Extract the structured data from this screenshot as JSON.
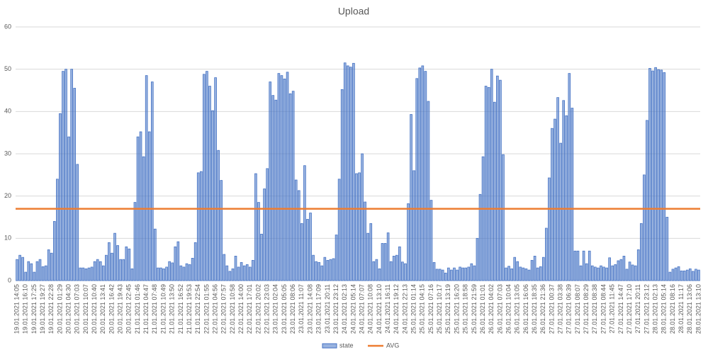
{
  "chart_data": {
    "type": "bar",
    "title": "Upload",
    "categories": [
      "19.01.2021 14:05",
      null,
      null,
      "19.01.2021 16:10",
      null,
      null,
      "19.01.2021 17:25",
      null,
      null,
      "19.01.2021 19:27",
      null,
      null,
      "19.01.2021 22:28",
      null,
      null,
      "20.01.2021 01:29",
      null,
      null,
      "20.01.2021 04:30",
      null,
      null,
      "20.01.2021 07:03",
      null,
      null,
      "20.01.2021 10:07",
      null,
      null,
      "20.01.2021 10:40",
      null,
      null,
      "20.01.2021 13:41",
      null,
      null,
      "20.01.2021 16:42",
      null,
      null,
      "20.01.2021 19:43",
      null,
      null,
      "20.01.2021 22:45",
      null,
      null,
      "21.01.2021 01:46",
      null,
      null,
      "21.01.2021 04:47",
      null,
      null,
      "21.01.2021 07:48",
      null,
      null,
      "21.01.2021 10:49",
      null,
      null,
      "21.01.2021 13:50",
      null,
      null,
      "21.01.2021 16:52",
      null,
      null,
      "21.01.2021 19:53",
      null,
      null,
      "21.01.2021 22:54",
      null,
      null,
      "22.01.2021 01:55",
      null,
      null,
      "22.01.2021 04:56",
      null,
      null,
      "22.01.2021 07:57",
      null,
      null,
      "22.01.2021 10:58",
      null,
      null,
      "22.01.2021 14:00",
      null,
      null,
      "22.01.2021 17:01",
      null,
      null,
      "22.01.2021 20:02",
      null,
      null,
      "22.01.2021 23:03",
      null,
      null,
      "23.01.2021 02:04",
      null,
      null,
      "23.01.2021 05:05",
      null,
      null,
      "23.01.2021 08:06",
      null,
      null,
      "23.01.2021 11:07",
      null,
      null,
      "23.01.2021 14:08",
      null,
      null,
      "23.01.2021 17:09",
      null,
      null,
      "23.01.2021 20:11",
      null,
      null,
      "23.01.2021 23:12",
      null,
      null,
      "24.01.2021 02:13",
      null,
      null,
      "24.01.2021 05:14",
      null,
      null,
      "24.01.2021 07:07",
      null,
      null,
      "24.01.2021 10:08",
      null,
      null,
      "24.01.2021 13:10",
      null,
      null,
      "24.01.2021 16:11",
      null,
      null,
      "24.01.2021 19:12",
      null,
      null,
      "24.01.2021 22:13",
      null,
      null,
      "25.01.2021 01:14",
      null,
      null,
      "25.01.2021 04:15",
      null,
      null,
      "25.01.2021 07:16",
      null,
      null,
      "25.01.2021 10:17",
      null,
      null,
      "25.01.2021 13:19",
      null,
      null,
      "25.01.2021 16:20",
      null,
      null,
      "25.01.2021 18:58",
      null,
      null,
      "25.01.2021 21:59",
      null,
      null,
      "26.01.2021 01:01",
      null,
      null,
      "26.01.2021 04:02",
      null,
      null,
      "26.01.2021 07:03",
      null,
      null,
      "26.01.2021 10:04",
      null,
      null,
      "26.01.2021 13:05",
      null,
      null,
      "26.01.2021 16:06",
      null,
      null,
      "26.01.2021 18:35",
      null,
      null,
      "26.01.2021 21:36",
      null,
      null,
      "27.01.2021 00:37",
      null,
      null,
      "27.01.2021 03:38",
      null,
      null,
      "27.01.2021 06:39",
      null,
      null,
      "27.01.2021 08:07",
      null,
      null,
      "27.01.2021 08:29",
      null,
      null,
      "27.01.2021 08:38",
      null,
      null,
      "27.01.2021 08:44",
      null,
      null,
      "27.01.2021 11:45",
      null,
      null,
      "27.01.2021 14:47",
      null,
      null,
      "27.01.2021 17:10",
      null,
      null,
      "27.01.2021 20:11",
      null,
      null,
      "27.01.2021 23:12",
      null,
      null,
      "28.01.2021 02:13",
      null,
      null,
      "28.01.2021 05:14",
      null,
      null,
      "28.01.2021 08:16",
      null,
      null,
      "28.01.2021 11:17",
      null,
      null,
      "28.01.2021 13:06",
      null,
      null,
      "28.01.2021 13:10"
    ],
    "series": [
      {
        "name": "state",
        "color": "#4472c4",
        "values": [
          5,
          6,
          5.5,
          2,
          4.5,
          4,
          2,
          4.5,
          5,
          3.3,
          3.5,
          7.3,
          6.5,
          14,
          24,
          39.5,
          49.5,
          50,
          34,
          50,
          45.5,
          27.5,
          3,
          3,
          2.8,
          3,
          3.2,
          4.5,
          5,
          4.5,
          3.5,
          6,
          9,
          6.5,
          11.2,
          8.3,
          5,
          5,
          8,
          7.5,
          2.8,
          18.5,
          34,
          35.2,
          29.3,
          48.5,
          35.2,
          47,
          12.2,
          3,
          3,
          2.8,
          3.2,
          4.5,
          4.2,
          8,
          9.2,
          3.5,
          3.2,
          4,
          3.8,
          5.3,
          9,
          25.5,
          25.8,
          48.8,
          49.5,
          46,
          40.2,
          48,
          30.8,
          23.7,
          6.2,
          3.5,
          2.2,
          2.8,
          5.8,
          3.2,
          4.3,
          3.5,
          3.8,
          3.2,
          4.8,
          25.3,
          18.5,
          11,
          21.7,
          26.5,
          47,
          43.8,
          42.7,
          49,
          48.5,
          47.7,
          49.3,
          44.2,
          44.8,
          23.8,
          21.3,
          13.5,
          27.2,
          14.5,
          16,
          6,
          4.5,
          4.3,
          3.5,
          5.5,
          4.8,
          5,
          5.2,
          10.8,
          24,
          45.2,
          51.5,
          50.8,
          50.5,
          51.4,
          25.3,
          25.5,
          30,
          18.6,
          11.2,
          13.5,
          4.5,
          5,
          2.8,
          8.8,
          8.8,
          11.3,
          4.5,
          5.8,
          6,
          8,
          4.4,
          4,
          18.2,
          39.3,
          26,
          47.8,
          50.3,
          50.8,
          49.5,
          42.4,
          19,
          4.3,
          2.7,
          2.7,
          2.5,
          1.8,
          3,
          2.5,
          3,
          2.5,
          3.2,
          3,
          3,
          3.2,
          4,
          3.5,
          10,
          20.4,
          29.3,
          46,
          45.7,
          50,
          42.2,
          48.4,
          47.4,
          29.8,
          3,
          3.4,
          2.8,
          5.5,
          4.5,
          3.2,
          3,
          2.8,
          2.5,
          4.8,
          5.8,
          3,
          3.3,
          5.5,
          12.4,
          24.3,
          36,
          38.2,
          43.3,
          32.5,
          42.6,
          39,
          49,
          40.8,
          7,
          7,
          3.5,
          7,
          4,
          7,
          3.5,
          3.2,
          3,
          3.5,
          3.2,
          3,
          5.4,
          3.5,
          3.8,
          4.7,
          5,
          5.8,
          2.7,
          4.4,
          3.7,
          3.5,
          7.3,
          13.5,
          25,
          37.9,
          50.2,
          49.6,
          50.4,
          49.9,
          49.8,
          49.2,
          15,
          2,
          2.7,
          3,
          3.3,
          2.3,
          2.3,
          2.5,
          2.8,
          2.2,
          2.7,
          2.5
        ]
      }
    ],
    "reference_line": {
      "name": "AVG",
      "value": 17,
      "color": "#ed7d31"
    },
    "ylim": [
      0,
      60
    ],
    "yticks": [
      0,
      10,
      20,
      30,
      40,
      50,
      60
    ],
    "grid": true,
    "legend": "bottom"
  }
}
